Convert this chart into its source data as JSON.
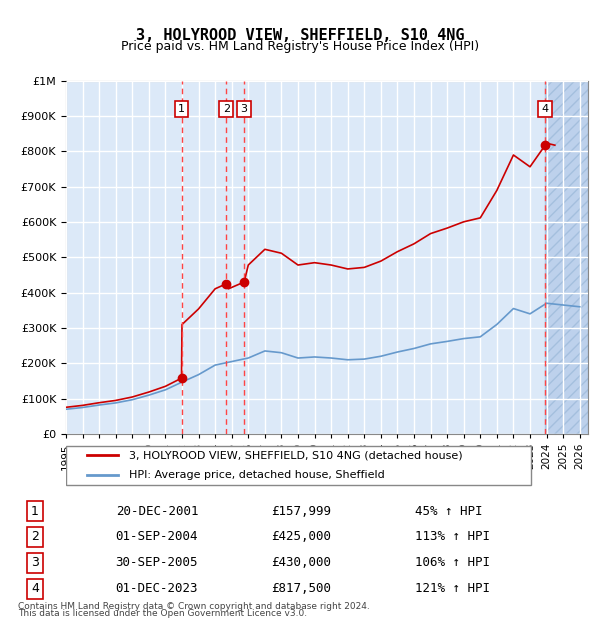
{
  "title": "3, HOLYROOD VIEW, SHEFFIELD, S10 4NG",
  "subtitle": "Price paid vs. HM Land Registry's House Price Index (HPI)",
  "red_label": "3, HOLYROOD VIEW, SHEFFIELD, S10 4NG (detached house)",
  "blue_label": "HPI: Average price, detached house, Sheffield",
  "footer_line1": "Contains HM Land Registry data © Crown copyright and database right 2024.",
  "footer_line2": "This data is licensed under the Open Government Licence v3.0.",
  "transactions": [
    {
      "num": 1,
      "date": "20-DEC-2001",
      "price": 157999,
      "pct": "45%",
      "dir": "↑"
    },
    {
      "num": 2,
      "date": "01-SEP-2004",
      "price": 425000,
      "pct": "113%",
      "dir": "↑"
    },
    {
      "num": 3,
      "date": "30-SEP-2005",
      "price": 430000,
      "pct": "106%",
      "dir": "↑"
    },
    {
      "num": 4,
      "date": "01-DEC-2023",
      "price": 817500,
      "pct": "121%",
      "dir": "↑"
    }
  ],
  "transaction_dates_decimal": [
    2001.97,
    2004.67,
    2005.75,
    2023.92
  ],
  "transaction_prices": [
    157999,
    425000,
    430000,
    817500
  ],
  "bg_color": "#dce9f8",
  "hatch_color": "#b0c8e8",
  "grid_color": "#ffffff",
  "red_color": "#cc0000",
  "blue_color": "#6699cc",
  "vline_color": "#ff4444",
  "ylim": [
    0,
    1000000
  ],
  "xlim_start": 1995.0,
  "xlim_end": 2026.5
}
